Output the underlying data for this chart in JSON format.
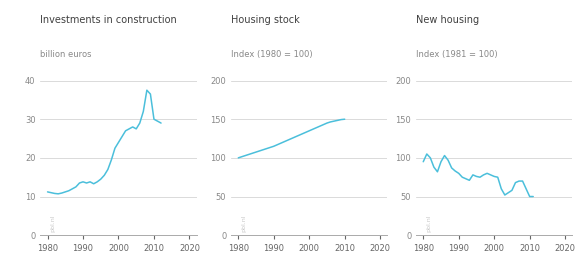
{
  "title1": "Investments in construction",
  "title2": "Housing stock",
  "title3": "New housing",
  "ylabel1": "billion euros",
  "ylabel2": "Index (1980 = 100)",
  "ylabel3": "Index (1981 = 100)",
  "watermark": "pbl.nl",
  "line_color": "#4BBFDB",
  "background_color": "#ffffff",
  "grid_color": "#cccccc",
  "title_color": "#404040",
  "label_color": "#888888",
  "invest_x": [
    1980,
    1981,
    1982,
    1983,
    1984,
    1985,
    1986,
    1987,
    1988,
    1989,
    1990,
    1991,
    1992,
    1993,
    1994,
    1995,
    1996,
    1997,
    1998,
    1999,
    2000,
    2001,
    2002,
    2003,
    2004,
    2005,
    2006,
    2007,
    2008,
    2009,
    2010,
    2011,
    2012
  ],
  "invest_y": [
    11.2,
    11.0,
    10.8,
    10.7,
    10.9,
    11.2,
    11.5,
    12.0,
    12.5,
    13.5,
    13.8,
    13.5,
    13.8,
    13.3,
    13.8,
    14.5,
    15.5,
    17.0,
    19.5,
    22.5,
    24.0,
    25.5,
    27.0,
    27.5,
    28.0,
    27.5,
    29.0,
    32.0,
    37.5,
    36.5,
    30.0,
    29.5,
    29.0
  ],
  "stock_x": [
    1980,
    1981,
    1982,
    1983,
    1984,
    1985,
    1986,
    1987,
    1988,
    1989,
    1990,
    1991,
    1992,
    1993,
    1994,
    1995,
    1996,
    1997,
    1998,
    1999,
    2000,
    2001,
    2002,
    2003,
    2004,
    2005,
    2006,
    2007,
    2008,
    2009,
    2010
  ],
  "stock_y": [
    100,
    101.5,
    103,
    104.5,
    106,
    107.5,
    109,
    110.5,
    112,
    113.5,
    115,
    117,
    119,
    121,
    123,
    125,
    127,
    129,
    131,
    133,
    135,
    137,
    139,
    141,
    143,
    145,
    146.5,
    147.5,
    148.5,
    149.5,
    150
  ],
  "new_x": [
    1980,
    1981,
    1982,
    1983,
    1984,
    1985,
    1986,
    1987,
    1988,
    1989,
    1990,
    1991,
    1992,
    1993,
    1994,
    1995,
    1996,
    1997,
    1998,
    1999,
    2000,
    2001,
    2002,
    2003,
    2004,
    2005,
    2006,
    2007,
    2008,
    2009,
    2010,
    2011
  ],
  "new_y": [
    95,
    105,
    100,
    88,
    82,
    95,
    103,
    97,
    87,
    83,
    80,
    75,
    73,
    71,
    78,
    76,
    75,
    78,
    80,
    78,
    76,
    75,
    60,
    52,
    55,
    58,
    68,
    70,
    70,
    60,
    50,
    50
  ],
  "xlim": [
    1978,
    2022
  ],
  "ylim1": [
    0,
    42
  ],
  "ylim2": [
    0,
    210
  ],
  "ylim3": [
    0,
    210
  ],
  "yticks1": [
    0,
    10,
    20,
    30,
    40
  ],
  "yticks2": [
    0,
    50,
    100,
    150,
    200
  ],
  "yticks3": [
    0,
    50,
    100,
    150,
    200
  ],
  "xticks": [
    1980,
    1990,
    2000,
    2010,
    2020
  ]
}
